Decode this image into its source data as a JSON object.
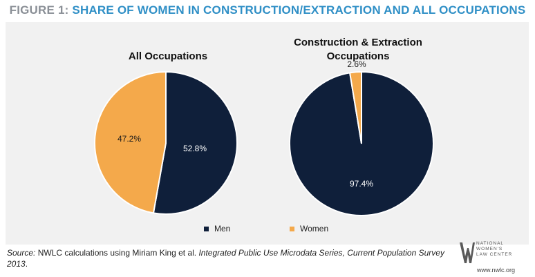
{
  "figure": {
    "title_lead": "FIGURE 1: ",
    "title_rest": "SHARE OF WOMEN IN CONSTRUCTION/EXTRACTION AND ALL OCCUPATIONS"
  },
  "colors": {
    "men": "#0f1f3a",
    "women": "#f4a94b"
  },
  "chart_data": [
    {
      "type": "pie",
      "title": "All Occupations",
      "slices": [
        {
          "label": "Men",
          "value": 52.8,
          "display": "52.8%",
          "color": "#0f1f3a"
        },
        {
          "label": "Women",
          "value": 47.2,
          "display": "47.2%",
          "color": "#f4a94b"
        }
      ]
    },
    {
      "type": "pie",
      "title_lines": [
        "Construction & Extraction",
        "Occupations"
      ],
      "slices": [
        {
          "label": "Men",
          "value": 97.4,
          "display": "97.4%",
          "color": "#0f1f3a"
        },
        {
          "label": "Women",
          "value": 2.6,
          "display": "2.6%",
          "color": "#f4a94b"
        }
      ]
    }
  ],
  "legend": {
    "men": "Men",
    "women": "Women",
    "placement": "bottom"
  },
  "source": {
    "label": "Source:",
    "text_1": " NWLC calculations using Miriam King et al. ",
    "text_italic": "Integrated Public Use Microdata Series, Current Population Survey 2013",
    "text_2": "."
  },
  "logo": {
    "lines": [
      "NATIONAL",
      "WOMEN'S",
      "LAW CENTER"
    ],
    "url": "www.nwlc.org"
  }
}
